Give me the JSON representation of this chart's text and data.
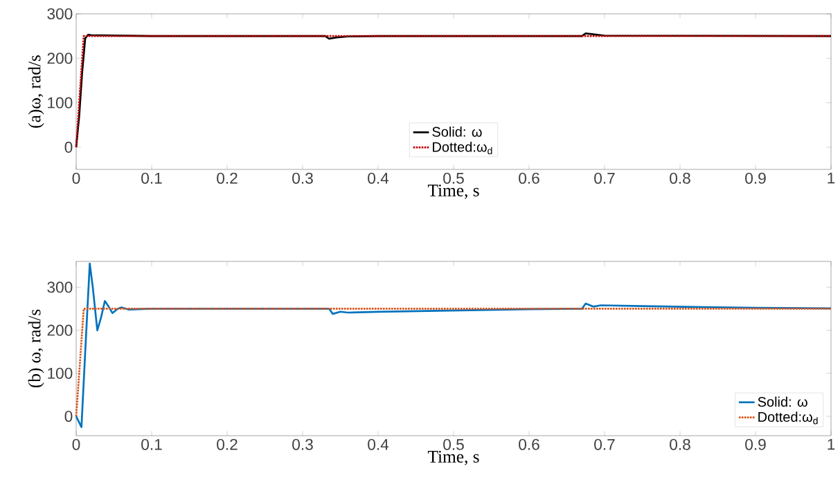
{
  "chart_data": [
    {
      "type": "line",
      "ylabel": "(a)ω, rad/s",
      "xlabel": "Time, s",
      "xlim": [
        0,
        1
      ],
      "ylim": [
        -50,
        300
      ],
      "xticks": [
        0,
        0.1,
        0.2,
        0.3,
        0.4,
        0.5,
        0.6,
        0.7,
        0.8,
        0.9,
        1
      ],
      "yticks": [
        0,
        100,
        200,
        300
      ],
      "legend": "bottom",
      "grid": false,
      "series": [
        {
          "name": "Solid: ω",
          "color": "#000000",
          "line_style": "solid",
          "x": [
            0,
            0.004,
            0.008,
            0.012,
            0.016,
            0.02,
            0.1,
            0.33,
            0.335,
            0.345,
            0.36,
            0.4,
            0.67,
            0.675,
            0.685,
            0.7,
            1
          ],
          "values": [
            0,
            70,
            170,
            245,
            253,
            252,
            250,
            250,
            244,
            247,
            249,
            250,
            250,
            256,
            254,
            251,
            250
          ]
        },
        {
          "name": "Dotted:ω$_{d}$",
          "color": "#c00000",
          "line_style": "dotted",
          "x": [
            0,
            0.01,
            1
          ],
          "values": [
            0,
            250,
            250
          ]
        }
      ]
    },
    {
      "type": "line",
      "ylabel": "(b) ω, rad/s",
      "xlabel": "Time, s",
      "xlim": [
        0,
        1
      ],
      "ylim": [
        -45,
        360
      ],
      "xticks": [
        0,
        0.1,
        0.2,
        0.3,
        0.4,
        0.5,
        0.6,
        0.7,
        0.8,
        0.9,
        1
      ],
      "yticks": [
        0,
        100,
        200,
        300
      ],
      "legend": "bottom right",
      "grid": false,
      "series": [
        {
          "name": "Solid: ω",
          "color": "#0072bd",
          "line_style": "solid",
          "x": [
            0,
            0.007,
            0.012,
            0.018,
            0.022,
            0.028,
            0.033,
            0.038,
            0.043,
            0.048,
            0.055,
            0.06,
            0.07,
            0.1,
            0.335,
            0.34,
            0.35,
            0.36,
            0.4,
            0.5,
            0.6,
            0.67,
            0.675,
            0.685,
            0.695,
            0.75,
            0.9,
            1
          ],
          "values": [
            0,
            -25,
            150,
            355,
            300,
            200,
            230,
            268,
            255,
            240,
            250,
            253,
            248,
            250,
            250,
            238,
            243,
            241,
            243,
            246,
            249,
            250,
            262,
            255,
            258,
            256,
            252,
            251
          ]
        },
        {
          "name": "Dotted:ω$_{d}$",
          "color": "#d95319",
          "line_style": "dotted",
          "x": [
            0,
            0.01,
            1
          ],
          "values": [
            0,
            250,
            250
          ]
        }
      ]
    }
  ]
}
